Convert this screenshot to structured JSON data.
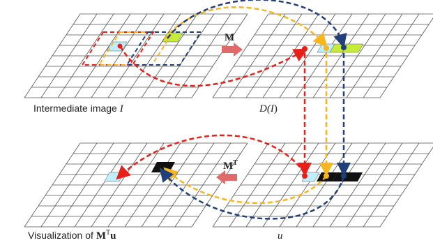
{
  "labels": {
    "intermediate_prefix": "Intermediate image ",
    "intermediate_var": "I",
    "d_prefix": "D(",
    "d_var": "I",
    "d_suffix": ")",
    "vis_prefix": "Visualization of ",
    "vis_M": "M",
    "vis_T": "T",
    "vis_u": "u",
    "u_label": "u"
  },
  "operators": {
    "M": "M",
    "MT_base": "M",
    "MT_sup": "T"
  },
  "colors": {
    "grid": "#555555",
    "red": "#e8201a",
    "orange": "#f7b51e",
    "navy": "#213f7a",
    "cyan": "#bfefff",
    "green": "#c6ec3a",
    "black": "#111111",
    "op_arrow": "#e06a6a"
  },
  "grid": {
    "rows": 8,
    "cols": 10
  }
}
